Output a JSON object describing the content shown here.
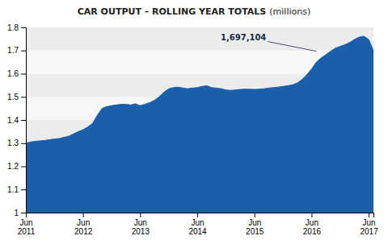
{
  "chart_data": {
    "type": "area",
    "title": "CAR OUTPUT – ROLLING YEAR TOTALS",
    "subtitle": "(millions)",
    "color": "#1b5faa",
    "grid": true,
    "categories": [
      "Jun\n2011",
      null,
      null,
      null,
      null,
      null,
      null,
      null,
      null,
      null,
      null,
      null,
      "Jun\n2012",
      null,
      null,
      null,
      null,
      null,
      null,
      null,
      null,
      null,
      null,
      null,
      "Jun\n2013",
      null,
      null,
      null,
      null,
      null,
      null,
      null,
      null,
      null,
      null,
      null,
      "Jun\n2014",
      null,
      null,
      null,
      null,
      null,
      null,
      null,
      null,
      null,
      null,
      null,
      "Jun\n2015",
      null,
      null,
      null,
      null,
      null,
      null,
      null,
      null,
      null,
      null,
      null,
      "Jun\n2016",
      null,
      null,
      null,
      null,
      null,
      null,
      null,
      null,
      null,
      null,
      null,
      "Jun\n2017",
      null
    ],
    "values": [
      1.3,
      1.305,
      1.308,
      1.31,
      1.312,
      1.315,
      1.318,
      1.32,
      1.325,
      1.33,
      1.34,
      1.35,
      1.358,
      1.37,
      1.385,
      1.42,
      1.45,
      1.458,
      1.462,
      1.465,
      1.468,
      1.468,
      1.465,
      1.47,
      1.462,
      1.468,
      1.475,
      1.485,
      1.5,
      1.52,
      1.535,
      1.54,
      1.542,
      1.538,
      1.535,
      1.538,
      1.54,
      1.545,
      1.548,
      1.54,
      1.538,
      1.535,
      1.53,
      1.528,
      1.53,
      1.532,
      1.533,
      1.533,
      1.532,
      1.533,
      1.535,
      1.538,
      1.54,
      1.542,
      1.545,
      1.548,
      1.552,
      1.56,
      1.575,
      1.595,
      1.62,
      1.65,
      1.668,
      1.682,
      1.697,
      1.71,
      1.718,
      1.725,
      1.735,
      1.748,
      1.758,
      1.762,
      1.748,
      1.7
    ],
    "ylim": [
      1.0,
      1.8
    ],
    "yticks": [
      1.0,
      1.1,
      1.2,
      1.3,
      1.4,
      1.5,
      1.6,
      1.7,
      1.8
    ],
    "annotations": [
      {
        "text": "1,697,104",
        "x": 61,
        "y": 1.697104
      }
    ]
  }
}
